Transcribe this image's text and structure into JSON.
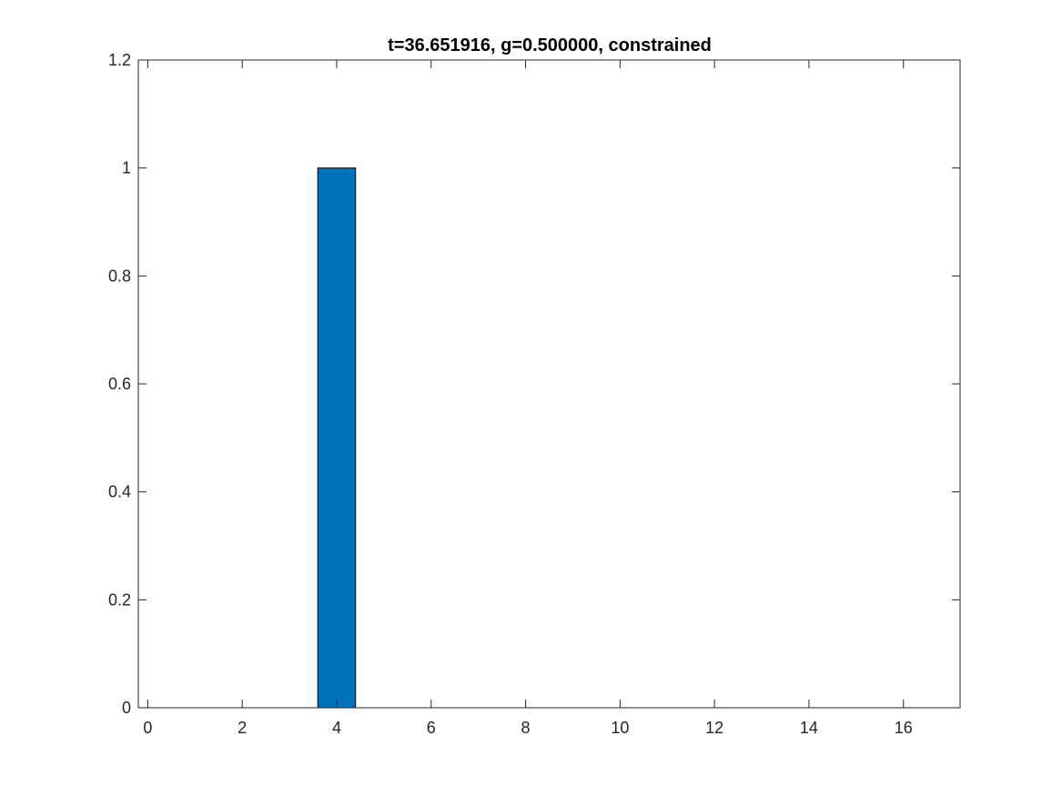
{
  "chart_data": {
    "type": "bar",
    "title": "t=36.651916, g=0.500000, constrained",
    "xlabel": "",
    "ylabel": "",
    "x": [
      0,
      1,
      2,
      3,
      4,
      5,
      6,
      7,
      8,
      9,
      10,
      11,
      12,
      13,
      14,
      15,
      16
    ],
    "values": [
      0,
      0,
      0,
      0,
      1,
      0,
      0,
      0,
      0,
      0,
      0,
      0,
      0,
      0,
      0,
      0,
      0
    ],
    "xlim": [
      -0.2,
      17.2
    ],
    "ylim": [
      0,
      1.2
    ],
    "xticks": [
      0,
      2,
      4,
      6,
      8,
      10,
      12,
      14,
      16
    ],
    "yticks": [
      0,
      0.2,
      0.4,
      0.6,
      0.8,
      1,
      1.2
    ],
    "ytick_labels": [
      "0",
      "0.2",
      "0.4",
      "0.6",
      "0.8",
      "1",
      "1.2"
    ],
    "bar_color": "#0072BD",
    "grid": false,
    "legend": "none"
  }
}
